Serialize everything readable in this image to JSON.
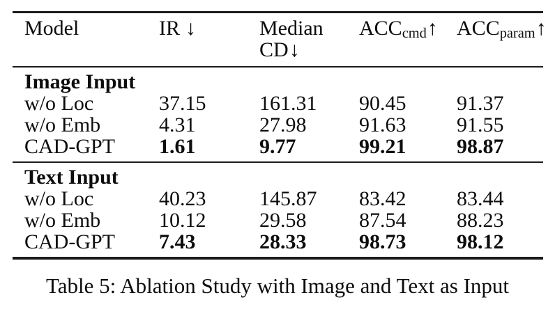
{
  "table": {
    "header": {
      "model": "Model",
      "ir": {
        "base": "IR",
        "arrow": "↓"
      },
      "median_cd": {
        "line1": "Median",
        "line2": "CD",
        "arrow": "↓"
      },
      "acc_cmd": {
        "base": "ACC",
        "sub": "cmd",
        "arrow": "↑"
      },
      "acc_param": {
        "base": "ACC",
        "sub": "param",
        "arrow": "↑"
      }
    },
    "sections": [
      {
        "title": "Image Input",
        "rows": [
          {
            "model": "w/o Loc",
            "values": [
              "37.15",
              "161.31",
              "90.45",
              "91.37"
            ]
          },
          {
            "model": "w/o Emb",
            "values": [
              "4.31",
              "27.98",
              "91.63",
              "91.55"
            ]
          },
          {
            "model": "CAD-GPT",
            "values": [
              "1.61",
              "9.77",
              "99.21",
              "98.87"
            ]
          }
        ]
      },
      {
        "title": "Text Input",
        "rows": [
          {
            "model": "w/o Loc",
            "values": [
              "40.23",
              "145.87",
              "83.42",
              "83.44"
            ]
          },
          {
            "model": "w/o Emb",
            "values": [
              "10.12",
              "29.58",
              "87.54",
              "88.23"
            ]
          },
          {
            "model": "CAD-GPT",
            "values": [
              "7.43",
              "28.33",
              "98.73",
              "98.12"
            ]
          }
        ]
      }
    ]
  },
  "caption": "Table 5: Ablation Study with Image and Text as Input",
  "colors": {
    "text": "#0d0d0d",
    "rule": "#1c1c1c",
    "background": "#ffffff"
  }
}
